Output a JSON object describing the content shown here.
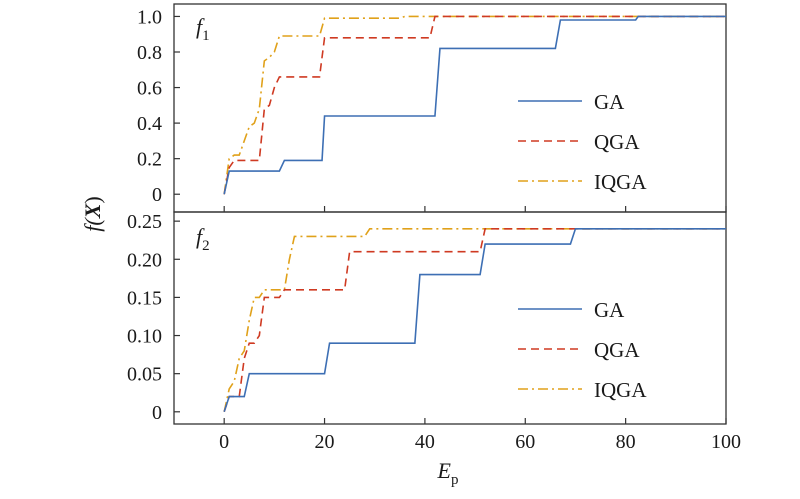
{
  "chart_data": {
    "type": "line",
    "x_axis": {
      "label_main": "E",
      "label_sub": "p",
      "range": [
        -10,
        100
      ],
      "ticks": [
        0,
        20,
        40,
        60,
        80,
        100
      ],
      "tick_labels": [
        "0",
        "20",
        "40",
        "60",
        "80",
        "100"
      ]
    },
    "y_axis_label": {
      "prefix": "f(",
      "var": "X",
      "suffix": ")"
    },
    "colors": {
      "GA": "#3d6fb4",
      "QGA": "#cf3a22",
      "IQGA": "#e0a11a"
    },
    "panels": [
      {
        "label_main": "f",
        "label_sub": "1",
        "ylim": [
          -0.1,
          1.07
        ],
        "yticks": [
          0,
          0.2,
          0.4,
          0.6,
          0.8,
          1.0
        ],
        "ytick_labels": [
          "0",
          "0.2",
          "0.4",
          "0.6",
          "0.8",
          "1.0"
        ],
        "legend": [
          "GA",
          "QGA",
          "IQGA"
        ],
        "legend_position": "center-right",
        "series": [
          {
            "name": "GA",
            "style": "solid",
            "x": [
              0,
              1,
              11,
              12,
              19.5,
              20,
              42,
              43,
              66,
              67,
              82,
              82.5,
              100
            ],
            "y": [
              0,
              0.13,
              0.13,
              0.19,
              0.19,
              0.44,
              0.44,
              0.82,
              0.82,
              0.98,
              0.98,
              1.0,
              1.0
            ]
          },
          {
            "name": "QGA",
            "style": "dashed",
            "x": [
              0,
              1,
              2,
              7,
              8,
              9,
              10,
              11,
              19,
              20,
              41,
              42,
              100
            ],
            "y": [
              0,
              0.15,
              0.19,
              0.19,
              0.48,
              0.5,
              0.6,
              0.66,
              0.66,
              0.88,
              0.88,
              1.0,
              1.0
            ]
          },
          {
            "name": "IQGA",
            "style": "dashdot",
            "x": [
              0,
              1,
              2,
              3,
              4,
              5,
              6,
              7,
              8,
              9,
              10,
              11,
              12,
              19,
              20,
              35,
              36,
              100
            ],
            "y": [
              0,
              0.2,
              0.22,
              0.22,
              0.3,
              0.38,
              0.4,
              0.48,
              0.75,
              0.77,
              0.8,
              0.89,
              0.89,
              0.89,
              0.99,
              0.99,
              1.0,
              1.0
            ]
          }
        ]
      },
      {
        "label_main": "f",
        "label_sub": "2",
        "ylim": [
          -0.016,
          0.262
        ],
        "yticks": [
          0,
          0.05,
          0.1,
          0.15,
          0.2,
          0.25
        ],
        "ytick_labels": [
          "0",
          "0.05",
          "0.10",
          "0.15",
          "0.20",
          "0.25"
        ],
        "legend": [
          "GA",
          "QGA",
          "IQGA"
        ],
        "legend_position": "center-right",
        "series": [
          {
            "name": "GA",
            "style": "solid",
            "x": [
              0,
              1,
              4,
              5,
              20,
              21,
              38,
              39,
              51,
              52,
              69,
              70,
              100
            ],
            "y": [
              0,
              0.02,
              0.02,
              0.05,
              0.05,
              0.09,
              0.09,
              0.18,
              0.18,
              0.22,
              0.22,
              0.24,
              0.24
            ]
          },
          {
            "name": "QGA",
            "style": "dashed",
            "x": [
              0,
              1,
              3,
              4,
              5,
              6,
              7,
              8,
              11,
              12,
              24,
              25,
              51,
              52,
              100
            ],
            "y": [
              0,
              0.02,
              0.02,
              0.07,
              0.09,
              0.09,
              0.1,
              0.15,
              0.15,
              0.16,
              0.16,
              0.21,
              0.21,
              0.24,
              0.24
            ]
          },
          {
            "name": "IQGA",
            "style": "dashdot",
            "x": [
              0,
              1,
              2,
              3,
              4,
              5,
              6,
              7,
              8,
              12,
              13,
              14,
              28,
              29,
              100
            ],
            "y": [
              0,
              0.03,
              0.04,
              0.07,
              0.08,
              0.12,
              0.15,
              0.15,
              0.16,
              0.16,
              0.2,
              0.23,
              0.23,
              0.24,
              0.24
            ]
          }
        ]
      }
    ]
  }
}
